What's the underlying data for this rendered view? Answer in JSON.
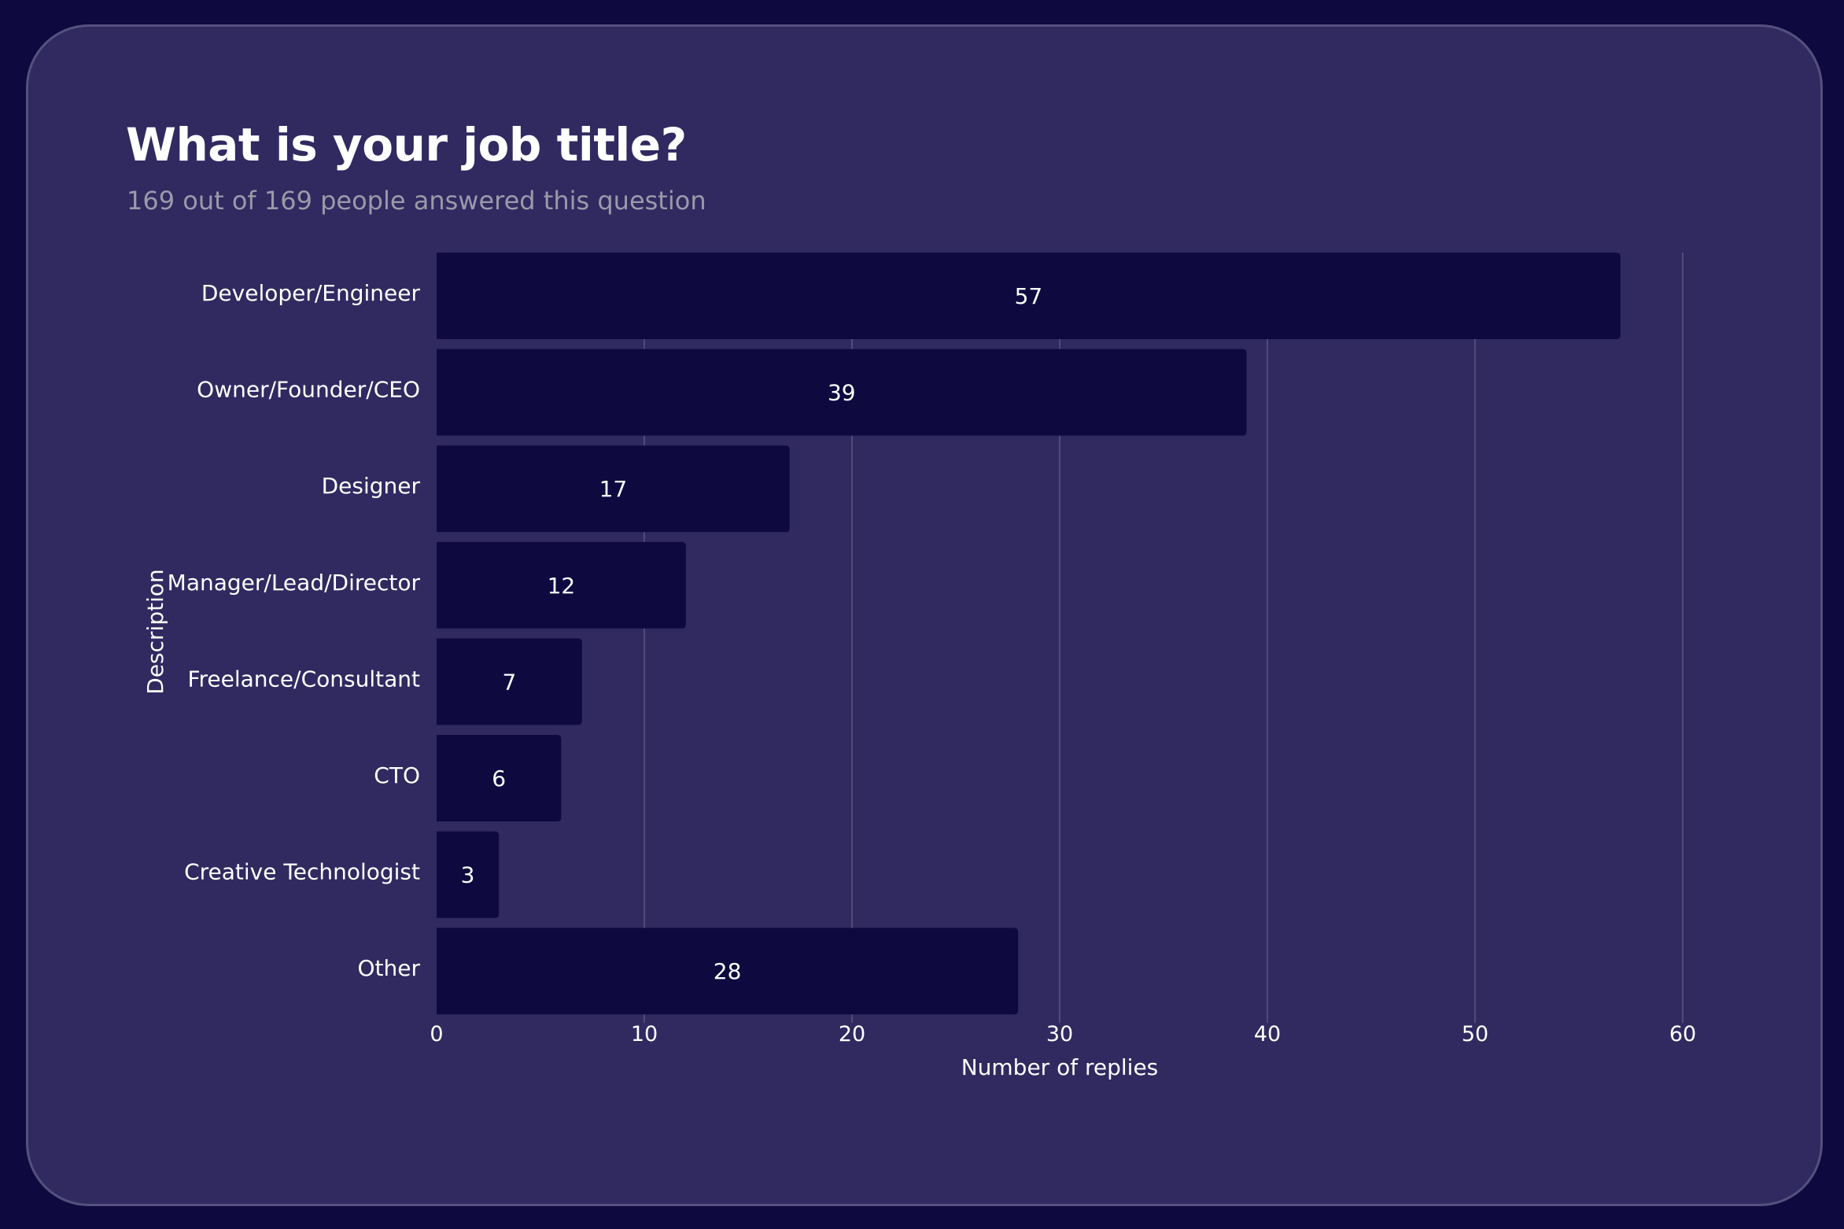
{
  "header": {
    "title": "What is your job title?",
    "subtitle": "169 out of 169 people answered this question"
  },
  "colors": {
    "page_background": "#0e0a40",
    "card_background": "#302a61",
    "bar": "#0e0a40",
    "gridline": "#5a5585",
    "text": "#ffffff",
    "subtitle": "#9c99a9"
  },
  "chart_data": {
    "type": "bar",
    "orientation": "horizontal",
    "title": "What is your job title?",
    "subtitle": "169 out of 169 people answered this question",
    "categories": [
      "Developer/Engineer",
      "Owner/Founder/CEO",
      "Designer",
      "Manager/Lead/Director",
      "Freelance/Consultant",
      "CTO",
      "Creative Technologist",
      "Other"
    ],
    "values": [
      57,
      39,
      17,
      12,
      7,
      6,
      3,
      28
    ],
    "xlabel": "Number of replies",
    "ylabel": "Description",
    "xlim": [
      0,
      60
    ],
    "xticks": [
      0,
      10,
      20,
      30,
      40,
      50,
      60
    ],
    "grid": "vertical",
    "data_labels": true
  }
}
